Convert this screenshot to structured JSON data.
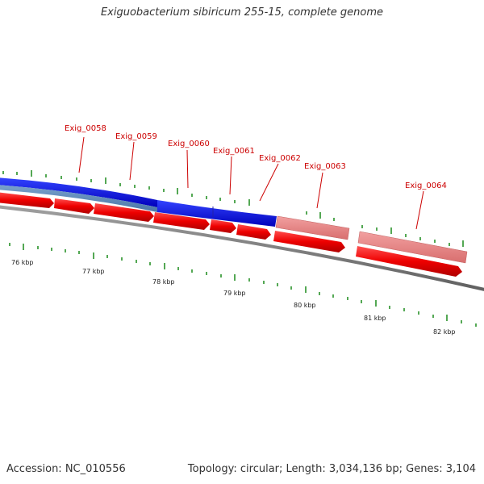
{
  "title": "Exiguobacterium sibiricum 255-15, complete genome",
  "accession": "Accession: NC_010556",
  "topology": "Topology: circular; Length: 3,034,136 bp; Genes: 3,104",
  "colors": {
    "backbone": "#808080",
    "forward_gene": "#ee0000",
    "highlight_blue": "#0000dd",
    "steel_blue": "#5a86b8",
    "pink": "#ee8888",
    "tick": "#007700",
    "label": "#cc0000"
  },
  "gene_labels": [
    "Exig_0058",
    "Exig_0059",
    "Exig_0060",
    "Exig_0061",
    "Exig_0062",
    "Exig_0063",
    "Exig_0064"
  ],
  "kbp_labels": [
    "76 kbp",
    "77 kbp",
    "78 kbp",
    "79 kbp",
    "80 kbp",
    "81 kbp",
    "82 kbp"
  ]
}
